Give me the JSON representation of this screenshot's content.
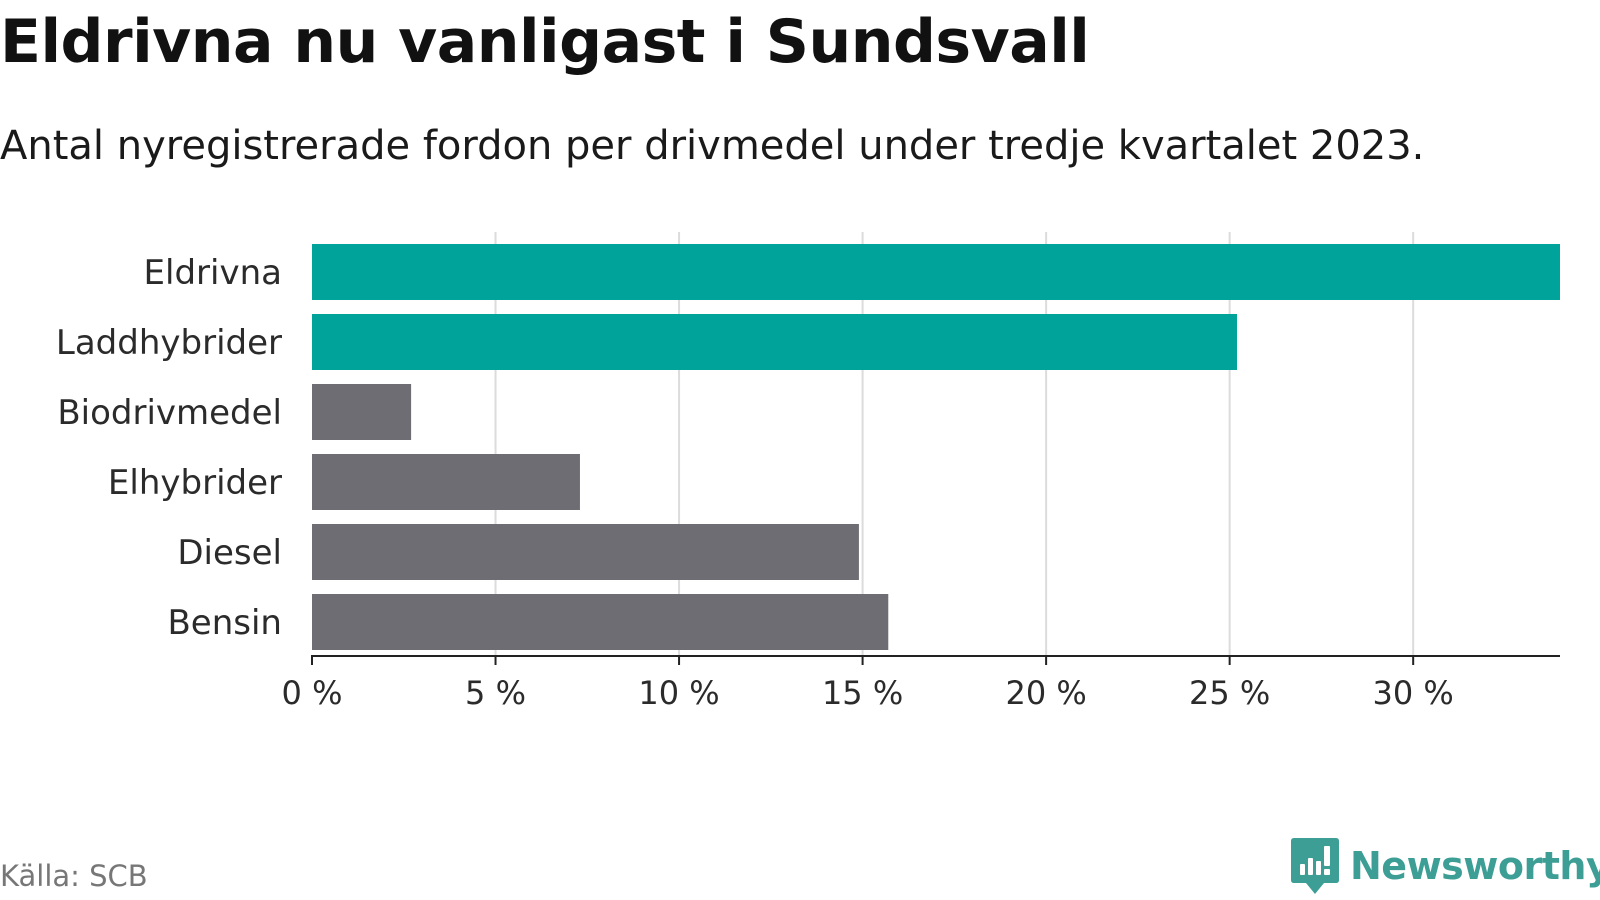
{
  "header": {
    "title": "Eldrivna nu vanligast i Sundsvall",
    "subtitle": "Antal nyregistrerade fordon per drivmedel under tredje kvartalet 2023."
  },
  "chart_data": {
    "type": "bar",
    "orientation": "horizontal",
    "categories": [
      "Eldrivna",
      "Laddhybrider",
      "Biodrivmedel",
      "Elhybrider",
      "Diesel",
      "Bensin"
    ],
    "values": [
      34.0,
      25.2,
      2.7,
      7.3,
      14.9,
      15.7
    ],
    "colors": [
      "#00a39a",
      "#00a39a",
      "#6e6d73",
      "#6e6d73",
      "#6e6d73",
      "#6e6d73"
    ],
    "xticks": [
      0,
      5,
      10,
      15,
      20,
      25,
      30
    ],
    "tick_labels": [
      "0 %",
      "5 %",
      "10 %",
      "15 %",
      "20 %",
      "25 %",
      "30 %"
    ],
    "xlim": [
      0,
      34
    ],
    "xlabel": "",
    "ylabel": "",
    "grid": true
  },
  "footer": {
    "source": "Källa: SCB",
    "brand": "Newsworthy",
    "brand_color": "#3d9e96"
  }
}
